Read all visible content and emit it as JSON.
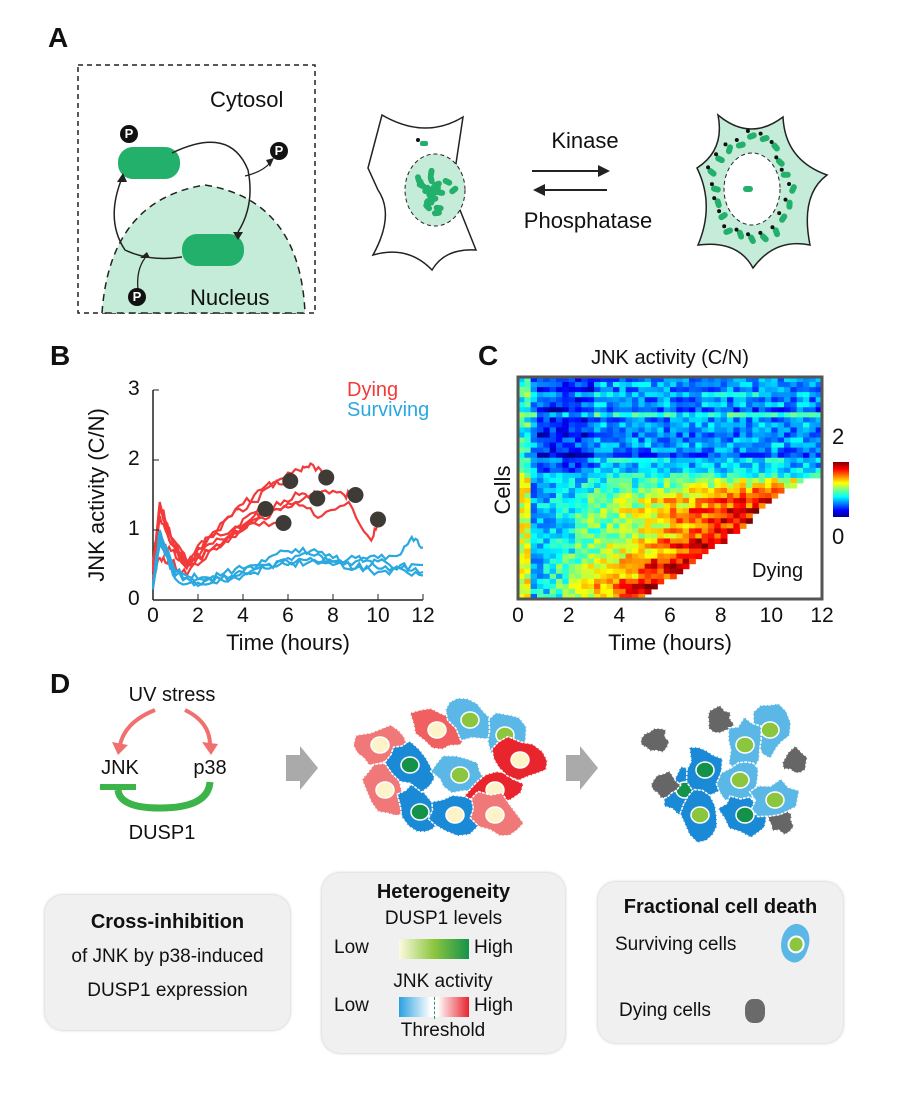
{
  "panels": {
    "a": {
      "label": "A",
      "cytosol": "Cytosol",
      "nucleus": "Nucleus",
      "phospho": "P",
      "kinase": "Kinase",
      "phosphatase": "Phosphatase"
    },
    "b": {
      "label": "B"
    },
    "c": {
      "label": "C"
    },
    "d": {
      "label": "D",
      "uv_stress": "UV stress",
      "jnk": "JNK",
      "p38": "p38",
      "dusp1": "DUSP1",
      "box1": {
        "title": "Cross-inhibition",
        "line1": "of JNK by p38-induced",
        "line2": "DUSP1 expression"
      },
      "box2": {
        "title": "Heterogeneity",
        "dusp1_levels": "DUSP1 levels",
        "low": "Low",
        "high": "High",
        "jnk_activity": "JNK activity",
        "threshold": "Threshold"
      },
      "box3": {
        "title": "Fractional cell death",
        "surviving": "Surviving cells",
        "dying": "Dying cells"
      }
    }
  },
  "colors": {
    "green": "#22b06a",
    "lightgreen": "#c5ecd9",
    "red": "#f23a3a",
    "blue": "#2aa8e0",
    "dot": "#3e3a36"
  },
  "chart_data": [
    {
      "type": "line",
      "title": "",
      "xlabel": "Time (hours)",
      "ylabel": "JNK activity (C/N)",
      "xlim": [
        0,
        12
      ],
      "ylim": [
        0,
        3
      ],
      "xticks": [
        "0",
        "2",
        "4",
        "6",
        "8",
        "10",
        "12"
      ],
      "yticks": [
        "0",
        "1",
        "2",
        "3"
      ],
      "legend": {
        "placement": "top-right",
        "entries": [
          "Dying",
          "Surviving"
        ]
      },
      "series": [
        {
          "name": "Dying",
          "x": [
            0,
            0.3,
            0.8,
            1.5,
            2.5,
            3.5,
            4.5,
            5
          ],
          "y": [
            0.4,
            1.4,
            0.9,
            0.5,
            0.9,
            1.0,
            1.25,
            1.3
          ]
        },
        {
          "name": "Dying",
          "x": [
            0,
            0.3,
            0.8,
            1.5,
            2.5,
            3.5,
            4.5,
            5.8
          ],
          "y": [
            0.5,
            1.3,
            0.8,
            0.45,
            0.8,
            0.95,
            1.1,
            1.1
          ]
        },
        {
          "name": "Dying",
          "x": [
            0,
            0.3,
            0.8,
            1.5,
            2.5,
            3.5,
            4.5,
            5.5,
            6.1
          ],
          "y": [
            0.4,
            1.2,
            0.8,
            0.5,
            0.9,
            1.2,
            1.5,
            1.7,
            1.7
          ]
        },
        {
          "name": "Dying",
          "x": [
            0,
            0.3,
            0.8,
            1.5,
            2.5,
            3.5,
            4.5,
            5.5,
            6.5,
            7.3
          ],
          "y": [
            0.5,
            1.3,
            0.9,
            0.5,
            0.7,
            0.9,
            1.2,
            1.4,
            1.5,
            1.45
          ]
        },
        {
          "name": "Dying",
          "x": [
            0,
            0.3,
            0.8,
            1.5,
            2.5,
            3.5,
            4.5,
            5.5,
            6.5,
            7,
            7.7
          ],
          "y": [
            0.4,
            1.35,
            0.9,
            0.55,
            0.9,
            1.2,
            1.4,
            1.7,
            1.85,
            1.95,
            1.75
          ]
        },
        {
          "name": "Dying",
          "x": [
            0,
            0.3,
            0.8,
            1.5,
            2.5,
            3.5,
            4.5,
            5.5,
            6.5,
            7.5,
            8.5,
            9
          ],
          "y": [
            0.4,
            0.9,
            0.7,
            0.5,
            0.7,
            0.9,
            1.1,
            1.3,
            1.4,
            1.55,
            1.5,
            1.5
          ]
        },
        {
          "name": "Dying",
          "x": [
            0,
            0.3,
            0.8,
            1.5,
            2.5,
            3.5,
            4.5,
            5.5,
            6.5,
            7.5,
            8.7,
            9.7,
            10
          ],
          "y": [
            0.3,
            0.6,
            0.55,
            0.35,
            0.7,
            0.95,
            1.15,
            1.3,
            1.35,
            1.2,
            1.4,
            0.85,
            1.15
          ]
        },
        {
          "name": "Surviving",
          "x": [
            0,
            0.3,
            1,
            2,
            3,
            4,
            5,
            6,
            7,
            8,
            9,
            10,
            11,
            11.5,
            12
          ],
          "y": [
            0.2,
            1.0,
            0.35,
            0.25,
            0.3,
            0.4,
            0.55,
            0.7,
            0.7,
            0.6,
            0.55,
            0.6,
            0.65,
            0.9,
            0.75
          ]
        },
        {
          "name": "Surviving",
          "x": [
            0,
            0.3,
            1,
            2,
            3,
            4,
            5,
            6,
            7,
            8,
            9,
            10,
            11,
            12
          ],
          "y": [
            0.15,
            0.9,
            0.3,
            0.2,
            0.3,
            0.35,
            0.45,
            0.6,
            0.65,
            0.55,
            0.45,
            0.55,
            0.45,
            0.5
          ]
        },
        {
          "name": "Surviving",
          "x": [
            0,
            0.3,
            1,
            2,
            3,
            4,
            5,
            6,
            7,
            8,
            9,
            10,
            11,
            12
          ],
          "y": [
            0.2,
            0.8,
            0.35,
            0.3,
            0.35,
            0.45,
            0.5,
            0.55,
            0.6,
            0.5,
            0.6,
            0.45,
            0.5,
            0.4
          ]
        },
        {
          "name": "Surviving",
          "x": [
            0,
            0.3,
            1,
            2,
            3,
            4,
            5,
            6,
            7,
            8,
            9,
            10,
            11,
            12
          ],
          "y": [
            0.2,
            0.85,
            0.4,
            0.3,
            0.3,
            0.4,
            0.5,
            0.5,
            0.55,
            0.55,
            0.45,
            0.4,
            0.45,
            0.35
          ]
        }
      ],
      "death_points": {
        "x": [
          5,
          5.8,
          6.1,
          7.3,
          7.7,
          9,
          10
        ],
        "y": [
          1.3,
          1.1,
          1.7,
          1.45,
          1.75,
          1.5,
          1.15
        ]
      }
    },
    {
      "type": "heatmap",
      "title": "JNK activity (C/N)",
      "xlabel": "Time (hours)",
      "ylabel": "Cells",
      "xlim": [
        0,
        12
      ],
      "xticks": [
        "0",
        "2",
        "4",
        "6",
        "8",
        "10",
        "12"
      ],
      "colorbar": {
        "range": [
          0,
          2
        ],
        "ticks": [
          "0",
          "2"
        ],
        "colormap": "jet"
      },
      "annotation": "Dying",
      "rows_surviving_mean": [
        0.5,
        0.6,
        0.5,
        0.7,
        0.5,
        0.6,
        0.4,
        0.8,
        0.5,
        0.6,
        0.5,
        0.45,
        0.55,
        0.6,
        0.5,
        0.4,
        0.7,
        0.6,
        0.65,
        0.8
      ],
      "rows_dying_death_time": [
        11,
        10.8,
        10.4,
        10,
        9.8,
        9.7,
        9.4,
        9.2,
        9,
        8.8,
        8.5,
        8.2,
        8,
        7.7,
        7.4,
        7.1,
        6.8,
        6.6,
        6.3,
        6,
        5.7,
        5.4,
        5.1,
        4.8
      ],
      "rows_dying_peak": [
        1.2,
        1.3,
        1.5,
        1.6,
        1.8,
        1.6,
        1.9,
        1.7,
        1.8,
        1.6,
        1.7,
        1.5,
        1.8,
        1.9,
        1.6,
        1.7,
        1.8,
        1.9,
        1.7,
        1.6,
        1.8,
        1.9,
        1.7,
        1.6
      ]
    }
  ]
}
